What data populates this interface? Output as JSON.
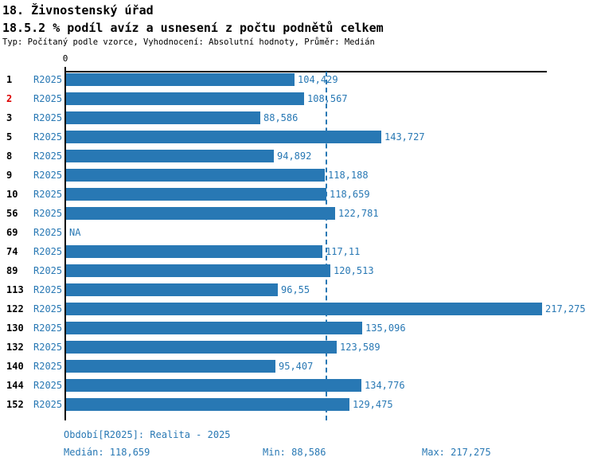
{
  "header": {
    "title": "18. Živnostenský úřad",
    "subtitle": "18.5.2 % podíl avíz a usnesení z počtu podnětů celkem",
    "meta": "Typ: Počítaný podle vzorce, Vyhodnocení: Absolutní hodnoty, Průměr: Medián"
  },
  "chart_data": {
    "type": "bar",
    "orientation": "horizontal",
    "title": "18.5.2 % podíl avíz a usnesení z počtu podnětů celkem",
    "series_label": "R2025",
    "categories": [
      "1",
      "2",
      "3",
      "5",
      "8",
      "9",
      "10",
      "56",
      "69",
      "74",
      "89",
      "113",
      "122",
      "130",
      "132",
      "140",
      "144",
      "152"
    ],
    "values": [
      104.429,
      108.567,
      88.586,
      143.727,
      94.892,
      118.188,
      118.659,
      122.781,
      null,
      117.11,
      120.513,
      96.55,
      217.275,
      135.096,
      123.589,
      95.407,
      134.776,
      129.475
    ],
    "value_labels": [
      "104,429",
      "108,567",
      "88,586",
      "143,727",
      "94,892",
      "118,188",
      "118,659",
      "122,781",
      "NA",
      "117,11",
      "120,513",
      "96,55",
      "217,275",
      "135,096",
      "123,589",
      "95,407",
      "134,776",
      "129,475"
    ],
    "highlighted_category": "2",
    "na_label": "NA",
    "zero_tick_label": "0",
    "xlim": [
      0,
      219.4
    ],
    "median_value": 118.659,
    "bar_color": "#2878b4",
    "highlight_color": "#dd0000",
    "legend_position": "none",
    "grid": false
  },
  "footer": {
    "period": "Období[R2025]: Realita - 2025",
    "median": "Medián: 118,659",
    "min": "Min: 88,586",
    "max": "Max: 217,275"
  }
}
